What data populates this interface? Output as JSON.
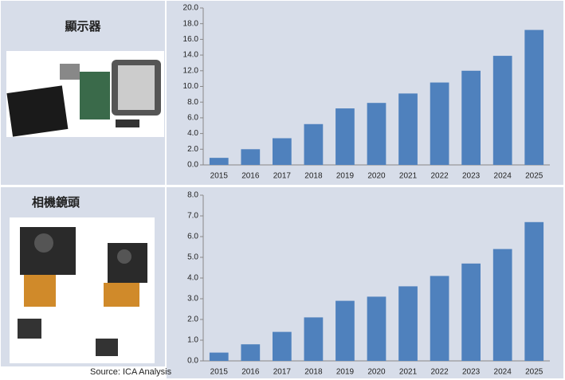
{
  "chart_data": [
    {
      "type": "bar",
      "title": "顯示器",
      "categories": [
        "2015",
        "2016",
        "2017",
        "2018",
        "2019",
        "2020",
        "2021",
        "2022",
        "2023",
        "2024",
        "2025"
      ],
      "values": [
        0.9,
        2.0,
        3.4,
        5.2,
        7.2,
        7.9,
        9.1,
        10.5,
        12.0,
        13.9,
        17.2
      ],
      "color": "#4f81bd",
      "ylim": [
        0,
        20
      ],
      "yticks": [
        {
          "value": 0,
          "label": "0.0"
        },
        {
          "value": 2,
          "label": "2.0"
        },
        {
          "value": 4,
          "label": "4.0"
        },
        {
          "value": 6,
          "label": "6.0"
        },
        {
          "value": 8,
          "label": "8.0"
        },
        {
          "value": 10,
          "label": "10.0"
        },
        {
          "value": 12,
          "label": "12.0"
        },
        {
          "value": 14,
          "label": "14.0"
        },
        {
          "value": 16,
          "label": "16.0"
        },
        {
          "value": 18,
          "label": "18.0"
        },
        {
          "value": 20,
          "label": "20.0"
        }
      ]
    },
    {
      "type": "bar",
      "title": "相機鏡頭",
      "categories": [
        "2015",
        "2016",
        "2017",
        "2018",
        "2019",
        "2020",
        "2021",
        "2022",
        "2023",
        "2024",
        "2025"
      ],
      "values": [
        0.4,
        0.8,
        1.4,
        2.1,
        2.9,
        3.1,
        3.6,
        4.1,
        4.7,
        5.4,
        6.7
      ],
      "color": "#4f81bd",
      "ylim": [
        0,
        8
      ],
      "yticks": [
        {
          "value": 0,
          "label": "0.0"
        },
        {
          "value": 1,
          "label": "1.0"
        },
        {
          "value": 2,
          "label": "2.0"
        },
        {
          "value": 3,
          "label": "3.0"
        },
        {
          "value": 4,
          "label": "4.0"
        },
        {
          "value": 5,
          "label": "5.0"
        },
        {
          "value": 6,
          "label": "6.0"
        },
        {
          "value": 7,
          "label": "7.0"
        },
        {
          "value": 8,
          "label": "8.0"
        }
      ]
    }
  ],
  "source": "Source: ICA Analysis"
}
